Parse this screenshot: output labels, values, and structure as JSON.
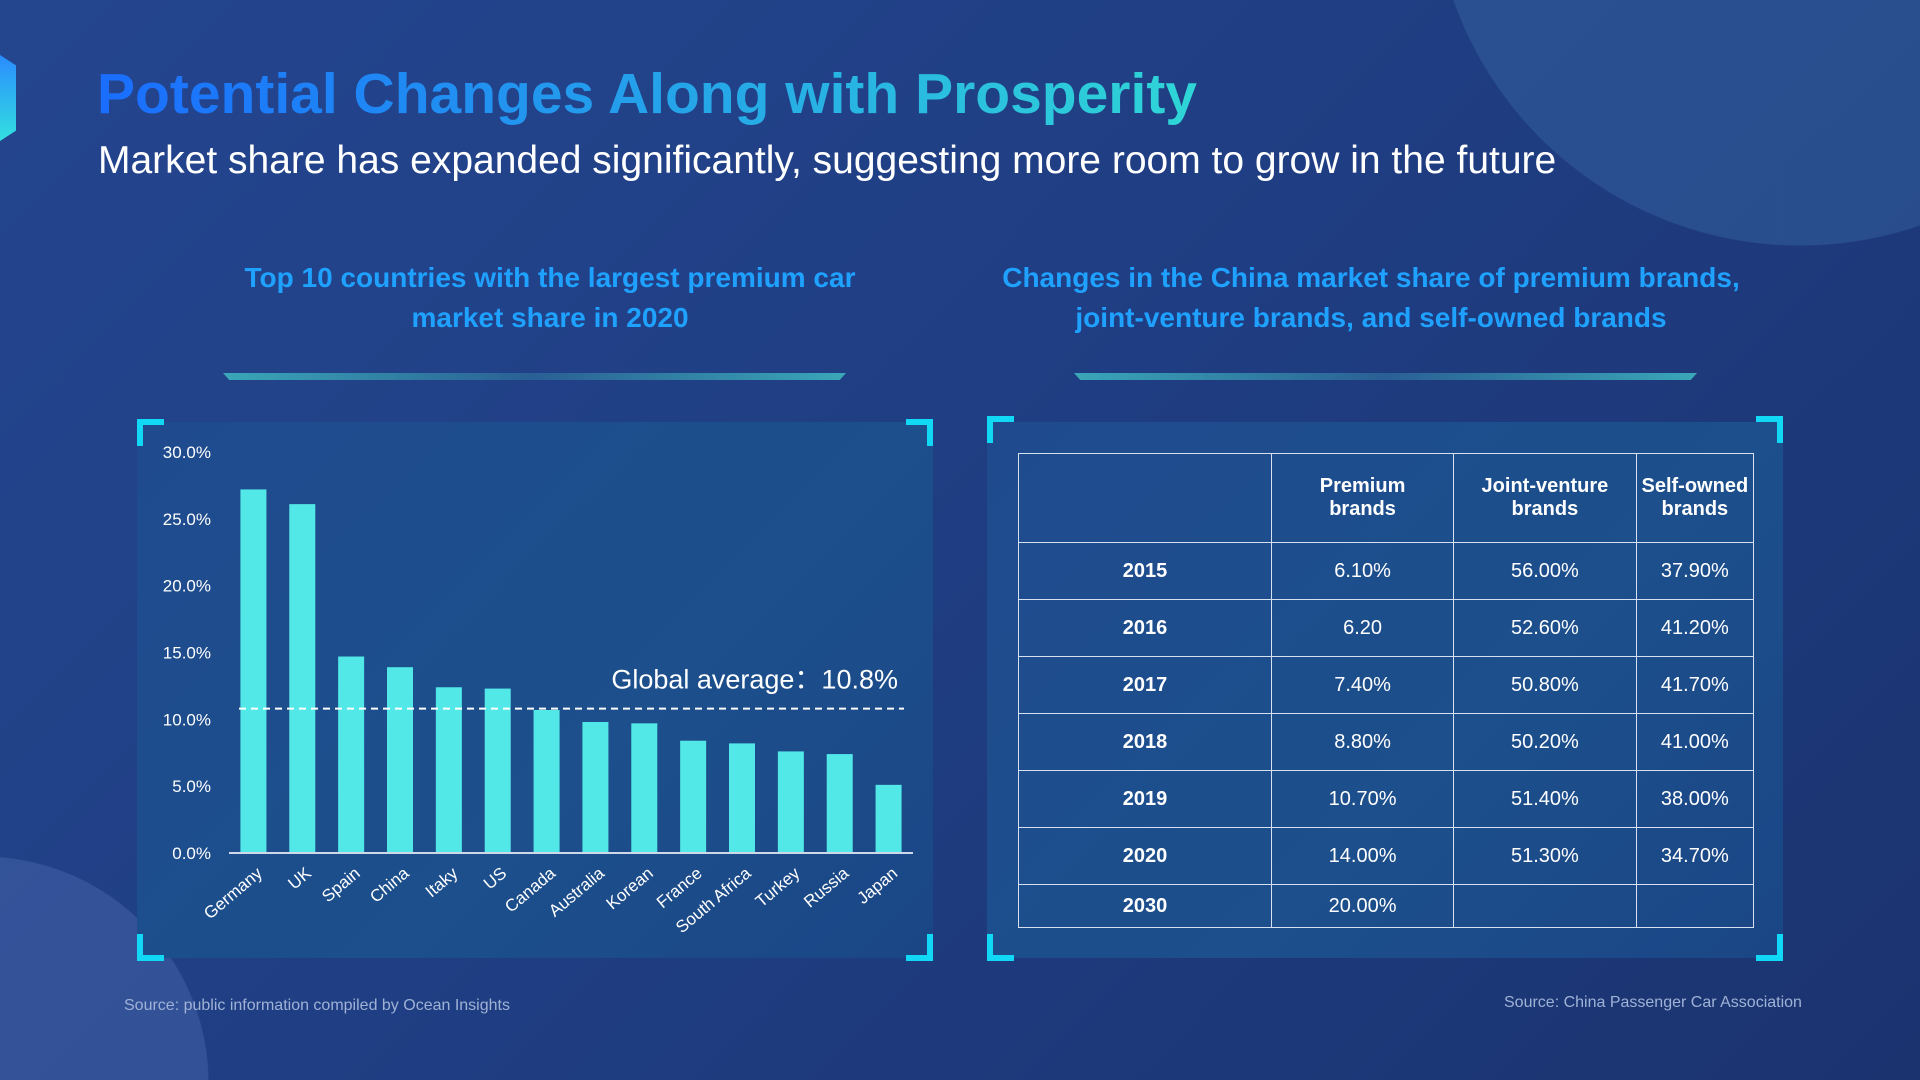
{
  "title": "Potential Changes Along with Prosperity",
  "subtitle": "Market share has expanded significantly, suggesting more room to grow in the future",
  "left_heading": [
    "Top 10 countries with the largest premium car",
    "market share in 2020"
  ],
  "right_heading": [
    "Changes in the China market share of premium brands,",
    "joint-venture brands, and self-owned brands"
  ],
  "left_source": "Source: public information compiled by Ocean Insights",
  "right_source": "Source: China Passenger Car Association",
  "colors": {
    "bar": "#52e8e8",
    "accent": "#10d8f5"
  },
  "chart_data": {
    "type": "bar",
    "categories": [
      "Germany",
      "UK",
      "Spain",
      "China",
      "Itaky",
      "US",
      "Canada",
      "Australia",
      "Korean",
      "France",
      "South Africa",
      "Turkey",
      "Russia",
      "Japan"
    ],
    "values": [
      27.2,
      26.1,
      14.7,
      13.9,
      12.4,
      12.3,
      10.7,
      9.8,
      9.7,
      8.4,
      8.2,
      7.6,
      7.4,
      5.1
    ],
    "ylim": [
      0,
      30
    ],
    "yticks": [
      "0.0%",
      "5.0%",
      "10.0%",
      "15.0%",
      "20.0%",
      "25.0%",
      "30.0%"
    ],
    "reference_line": {
      "value": 10.8,
      "label": "Global average：10.8%",
      "style": "dashed"
    },
    "grid": false
  },
  "table": {
    "headers": [
      "",
      "Premium brands",
      "Joint-venture brands",
      "Self-owned brands"
    ],
    "rows": [
      [
        "2015",
        "6.10%",
        "56.00%",
        "37.90%"
      ],
      [
        "2016",
        "6.20",
        "52.60%",
        "41.20%"
      ],
      [
        "2017",
        "7.40%",
        "50.80%",
        "41.70%"
      ],
      [
        "2018",
        "8.80%",
        "50.20%",
        "41.00%"
      ],
      [
        "2019",
        "10.70%",
        "51.40%",
        "38.00%"
      ],
      [
        "2020",
        "14.00%",
        "51.30%",
        "34.70%"
      ],
      [
        "2030",
        "20.00%",
        "",
        ""
      ]
    ]
  }
}
